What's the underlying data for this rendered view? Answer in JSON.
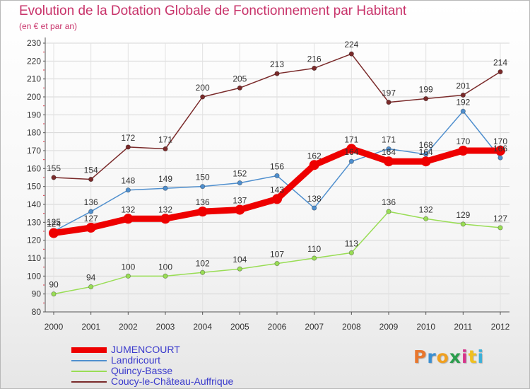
{
  "title": "Evolution de la Dotation Globale de Fonctionnement par Habitant",
  "subtitle": "(en € et par an)",
  "logo_text": "Proxiti",
  "chart_data": {
    "type": "line",
    "title": "Evolution de la Dotation Globale de Fonctionnement par Habitant",
    "subtitle": "(en € et par an)",
    "x": [
      2000,
      2001,
      2002,
      2003,
      2004,
      2005,
      2006,
      2007,
      2008,
      2009,
      2010,
      2011,
      2012
    ],
    "xlabel": "",
    "ylabel": "",
    "ylim": [
      80,
      230
    ],
    "yticks": [
      80,
      90,
      100,
      110,
      120,
      130,
      140,
      150,
      160,
      170,
      180,
      190,
      200,
      210,
      220,
      230
    ],
    "grid": true,
    "legend_position": "bottom-left",
    "series": [
      {
        "name": "JUMENCOURT",
        "color": "#ee0000",
        "values": [
          124,
          127,
          132,
          132,
          136,
          137,
          143,
          162,
          171,
          164,
          164,
          170,
          170
        ]
      },
      {
        "name": "Landricourt",
        "color": "#4f8fce",
        "values": [
          125,
          136,
          148,
          149,
          150,
          152,
          156,
          138,
          164,
          171,
          168,
          192,
          166
        ]
      },
      {
        "name": "Quincy-Basse",
        "color": "#99dd55",
        "values": [
          90,
          94,
          100,
          100,
          102,
          104,
          107,
          110,
          113,
          136,
          132,
          129,
          127
        ]
      },
      {
        "name": "Coucy-le-Château-Auffrique",
        "color": "#7a2a2a",
        "values": [
          155,
          154,
          172,
          171,
          200,
          205,
          213,
          216,
          224,
          197,
          199,
          201,
          214
        ]
      }
    ]
  }
}
